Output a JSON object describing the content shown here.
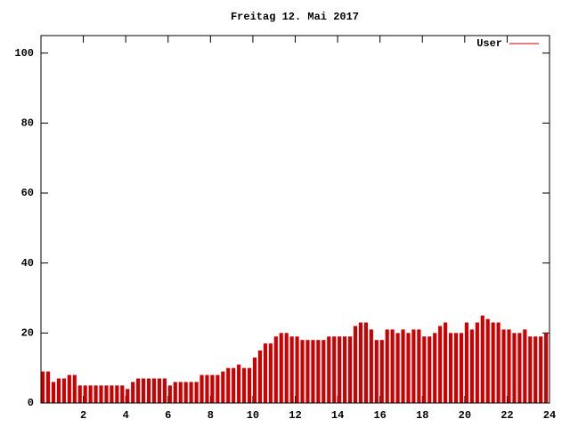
{
  "chart_data": {
    "type": "impulses",
    "title": "Freitag 12. Mai 2017",
    "x": [
      0,
      0.25,
      0.5,
      0.75,
      1,
      1.25,
      1.5,
      1.75,
      2,
      2.25,
      2.5,
      2.75,
      3,
      3.25,
      3.5,
      3.75,
      4,
      4.25,
      4.5,
      4.75,
      5,
      5.25,
      5.5,
      5.75,
      6,
      6.25,
      6.5,
      6.75,
      7,
      7.25,
      7.5,
      7.75,
      8,
      8.25,
      8.5,
      8.75,
      9,
      9.25,
      9.5,
      9.75,
      10,
      10.25,
      10.5,
      10.75,
      11,
      11.25,
      11.5,
      11.75,
      12,
      12.25,
      12.5,
      12.75,
      13,
      13.25,
      13.5,
      13.75,
      14,
      14.25,
      14.5,
      14.75,
      15,
      15.25,
      15.5,
      15.75,
      16,
      16.25,
      16.5,
      16.75,
      17,
      17.25,
      17.5,
      17.75,
      18,
      18.25,
      18.5,
      18.75,
      19,
      19.25,
      19.5,
      19.75,
      20,
      20.25,
      20.5,
      20.75,
      21,
      21.25,
      21.5,
      21.75,
      22,
      22.25,
      22.5,
      22.75,
      23,
      23.25,
      23.5,
      23.75
    ],
    "series": [
      {
        "name": "User",
        "color": "#cc0000",
        "values": [
          9,
          9,
          6,
          7,
          7,
          8,
          8,
          5,
          5,
          5,
          5,
          5,
          5,
          5,
          5,
          5,
          4,
          6,
          7,
          7,
          7,
          7,
          7,
          7,
          5,
          6,
          6,
          6,
          6,
          6,
          8,
          8,
          8,
          8,
          9,
          10,
          10,
          11,
          10,
          10,
          13,
          15,
          17,
          17,
          19,
          20,
          20,
          19,
          19,
          18,
          18,
          18,
          18,
          18,
          19,
          19,
          19,
          19,
          19,
          22,
          23,
          23,
          21,
          18,
          18,
          21,
          21,
          20,
          21,
          20,
          21,
          21,
          19,
          19,
          20,
          22,
          23,
          20,
          20,
          20,
          23,
          21,
          23,
          25,
          24,
          23,
          23,
          21,
          21,
          20,
          20,
          21,
          19,
          19,
          19,
          20
        ]
      }
    ],
    "xlim": [
      0,
      24
    ],
    "xticks": [
      2,
      4,
      6,
      8,
      10,
      12,
      14,
      16,
      18,
      20,
      22,
      24
    ],
    "ylim": [
      0,
      105
    ],
    "yticks": [
      0,
      20,
      40,
      60,
      80,
      100
    ],
    "legend": "upper right"
  }
}
